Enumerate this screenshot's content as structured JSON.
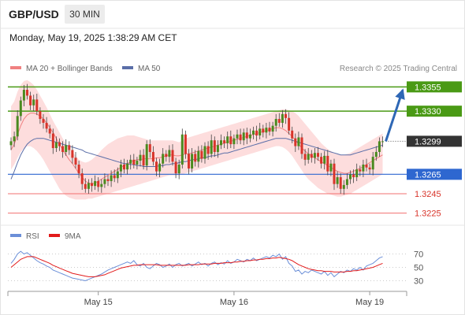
{
  "header": {
    "pair": "GBP/USD",
    "timeframe": "30 MIN",
    "datetime": "Monday, May 19, 2025 1:38:29 AM CET"
  },
  "legend": {
    "bollinger": "MA 20 + Bollinger Bands",
    "ma50": "MA 50",
    "source": "Research © 2025 Trading Central",
    "rsi": "RSI",
    "rsi_ma": "9MA"
  },
  "colors": {
    "bullish": "#4a8a1f",
    "bearish": "#d8342a",
    "resistance": "#4a9a15",
    "pivot": "#2e67d0",
    "support": "#f27070",
    "ma20": "#f08080",
    "ma50": "#5a6ea8",
    "bands": "#fdd9d9",
    "rsi": "#6b8fd8",
    "rsi_ma": "#e21b1b",
    "arrow": "#2e67b5",
    "current": "#333333"
  },
  "chart_data": [
    {
      "type": "candlestick",
      "title": "GBP/USD 30 MIN",
      "x_ticks": [
        "May 15",
        "May 16",
        "May 19"
      ],
      "ylim": [
        1.3215,
        1.3365
      ],
      "levels": [
        {
          "label": "1.3355",
          "value": 1.3355,
          "kind": "resistance"
        },
        {
          "label": "1.3330",
          "value": 1.333,
          "kind": "resistance"
        },
        {
          "label": "1.3299",
          "value": 1.3299,
          "kind": "current"
        },
        {
          "label": "1.3265",
          "value": 1.3265,
          "kind": "pivot"
        },
        {
          "label": "1.3245",
          "value": 1.3245,
          "kind": "support"
        },
        {
          "label": "1.3225",
          "value": 1.3225,
          "kind": "support"
        }
      ],
      "closes": [
        1.3299,
        1.3304,
        1.3325,
        1.3341,
        1.3352,
        1.3346,
        1.3336,
        1.3342,
        1.333,
        1.3322,
        1.3318,
        1.3312,
        1.3307,
        1.3292,
        1.3298,
        1.3294,
        1.3288,
        1.3295,
        1.329,
        1.3282,
        1.3275,
        1.3266,
        1.3255,
        1.325,
        1.3256,
        1.3253,
        1.3258,
        1.3252,
        1.3255,
        1.326,
        1.3258,
        1.3264,
        1.3261,
        1.3268,
        1.3275,
        1.327,
        1.3276,
        1.328,
        1.3275,
        1.3279,
        1.3285,
        1.3274,
        1.3296,
        1.3288,
        1.3278,
        1.3268,
        1.3276,
        1.3286,
        1.3283,
        1.329,
        1.3278,
        1.3266,
        1.3275,
        1.3306,
        1.3286,
        1.3271,
        1.3286,
        1.3278,
        1.3289,
        1.3281,
        1.3294,
        1.3286,
        1.33,
        1.3288,
        1.3295,
        1.33,
        1.3297,
        1.3304,
        1.3296,
        1.3302,
        1.3306,
        1.33,
        1.3308,
        1.3302,
        1.3306,
        1.331,
        1.3305,
        1.3312,
        1.3308,
        1.3313,
        1.3309,
        1.3315,
        1.3322,
        1.3318,
        1.3327,
        1.3323,
        1.331,
        1.3302,
        1.3294,
        1.3303,
        1.3286,
        1.328,
        1.3286,
        1.3282,
        1.3287,
        1.3283,
        1.3276,
        1.3284,
        1.3268,
        1.3276,
        1.3255,
        1.3262,
        1.325,
        1.3254,
        1.326,
        1.3265,
        1.3262,
        1.327,
        1.3268,
        1.3275,
        1.3272,
        1.327,
        1.3283,
        1.3288,
        1.3299,
        1.3299
      ],
      "ma20": [
        1.329,
        1.3296,
        1.3306,
        1.3315,
        1.3322,
        1.3326,
        1.3328,
        1.3328,
        1.3327,
        1.3325,
        1.3322,
        1.3318,
        1.3313,
        1.3308,
        1.3302,
        1.3296,
        1.329,
        1.3285,
        1.328,
        1.3276,
        1.3271,
        1.3266,
        1.3262,
        1.3258,
        1.3256,
        1.3255,
        1.3256,
        1.3258,
        1.326,
        1.3262,
        1.3264,
        1.3266,
        1.3268,
        1.327,
        1.3272,
        1.3274,
        1.3276,
        1.3278,
        1.3279,
        1.328,
        1.328,
        1.3281,
        1.3281,
        1.3281,
        1.3281,
        1.3282,
        1.3282,
        1.3283,
        1.3284,
        1.3285,
        1.3285,
        1.3284,
        1.3284,
        1.3285,
        1.3286,
        1.3286,
        1.3287,
        1.3288,
        1.3289,
        1.329,
        1.3291,
        1.3292,
        1.3293,
        1.3294,
        1.3295,
        1.3296,
        1.3297,
        1.3298,
        1.3299,
        1.33,
        1.3301,
        1.3302,
        1.3303,
        1.3304,
        1.3305,
        1.3306,
        1.3307,
        1.3308,
        1.3309,
        1.331,
        1.3311,
        1.3312,
        1.3313,
        1.3313,
        1.3312,
        1.331,
        1.3307,
        1.3304,
        1.33,
        1.3296,
        1.3292,
        1.3289,
        1.3286,
        1.3284,
        1.3282,
        1.328,
        1.3278,
        1.3276,
        1.3274,
        1.3272,
        1.327,
        1.3268,
        1.3267,
        1.3266,
        1.3266,
        1.3267,
        1.3268,
        1.327,
        1.3271,
        1.3273,
        1.3275,
        1.3277,
        1.3279,
        1.3281,
        1.3283,
        1.3285
      ],
      "upper_band": [
        1.3335,
        1.334,
        1.335,
        1.3357,
        1.3361,
        1.3362,
        1.336,
        1.3357,
        1.3352,
        1.3346,
        1.334,
        1.3334,
        1.3327,
        1.332,
        1.3314,
        1.3308,
        1.3302,
        1.3296,
        1.3292,
        1.3288,
        1.3284,
        1.328,
        1.3278,
        1.3277,
        1.3278,
        1.328,
        1.3283,
        1.3286,
        1.329,
        1.3293,
        1.3296,
        1.3298,
        1.33,
        1.3302,
        1.3303,
        1.3304,
        1.3305,
        1.3305,
        1.3305,
        1.3304,
        1.3303,
        1.3302,
        1.3301,
        1.33,
        1.33,
        1.33,
        1.33,
        1.33,
        1.33,
        1.33,
        1.33,
        1.3299,
        1.3298,
        1.33,
        1.3302,
        1.3303,
        1.3304,
        1.3305,
        1.3306,
        1.3307,
        1.3308,
        1.3309,
        1.331,
        1.3311,
        1.3312,
        1.3313,
        1.3314,
        1.3315,
        1.3316,
        1.3317,
        1.3318,
        1.3319,
        1.332,
        1.3321,
        1.3322,
        1.3323,
        1.3324,
        1.3325,
        1.3326,
        1.3327,
        1.3328,
        1.3329,
        1.333,
        1.3331,
        1.3332,
        1.3332,
        1.3331,
        1.333,
        1.3328,
        1.3325,
        1.3321,
        1.3317,
        1.3313,
        1.3309,
        1.3305,
        1.3301,
        1.3297,
        1.3294,
        1.3291,
        1.3289,
        1.3287,
        1.3286,
        1.3285,
        1.3285,
        1.3286,
        1.3287,
        1.3289,
        1.3291,
        1.3293,
        1.3295,
        1.3297,
        1.3299,
        1.3301,
        1.3303,
        1.3305,
        1.3307
      ],
      "lower_band": [
        1.327,
        1.3275,
        1.3282,
        1.3288,
        1.3292,
        1.3294,
        1.3294,
        1.3292,
        1.3289,
        1.3285,
        1.328,
        1.3274,
        1.3268,
        1.3262,
        1.3256,
        1.325,
        1.3246,
        1.3243,
        1.3241,
        1.324,
        1.3239,
        1.3239,
        1.3239,
        1.3239,
        1.324,
        1.324,
        1.3241,
        1.3242,
        1.3243,
        1.3244,
        1.3245,
        1.3246,
        1.3247,
        1.3248,
        1.3249,
        1.325,
        1.3251,
        1.3252,
        1.3253,
        1.3254,
        1.3255,
        1.3256,
        1.3257,
        1.3258,
        1.3259,
        1.326,
        1.3261,
        1.3262,
        1.3263,
        1.3264,
        1.3264,
        1.3264,
        1.3264,
        1.3265,
        1.3266,
        1.3267,
        1.3268,
        1.3269,
        1.327,
        1.3271,
        1.3272,
        1.3273,
        1.3274,
        1.3275,
        1.3276,
        1.3277,
        1.3278,
        1.3279,
        1.328,
        1.3281,
        1.3282,
        1.3283,
        1.3284,
        1.3285,
        1.3286,
        1.3287,
        1.3288,
        1.3289,
        1.329,
        1.3291,
        1.3292,
        1.3293,
        1.3294,
        1.3294,
        1.3293,
        1.3291,
        1.3288,
        1.3284,
        1.3279,
        1.3274,
        1.3269,
        1.3264,
        1.326,
        1.3257,
        1.3254,
        1.3251,
        1.3249,
        1.3247,
        1.3245,
        1.3244,
        1.3243,
        1.3242,
        1.3242,
        1.3243,
        1.3244,
        1.3245,
        1.3247,
        1.3249,
        1.3251,
        1.3253,
        1.3255,
        1.3257,
        1.3259,
        1.3261,
        1.3263,
        1.3265
      ],
      "ma50": [
        1.326,
        1.3268,
        1.3277,
        1.3285,
        1.3291,
        1.3296,
        1.3299,
        1.3301,
        1.3302,
        1.3302,
        1.3302,
        1.3301,
        1.33,
        1.3299,
        1.3298,
        1.3297,
        1.3296,
        1.3295,
        1.3294,
        1.3293,
        1.3292,
        1.3291,
        1.329,
        1.3288,
        1.3287,
        1.3286,
        1.3285,
        1.3284,
        1.3283,
        1.3282,
        1.3281,
        1.328,
        1.3279,
        1.3278,
        1.3277,
        1.3276,
        1.3276,
        1.3275,
        1.3275,
        1.3274,
        1.3274,
        1.3273,
        1.3273,
        1.3273,
        1.3273,
        1.3273,
        1.3274,
        1.3274,
        1.3275,
        1.3275,
        1.3276,
        1.3276,
        1.3277,
        1.3278,
        1.3278,
        1.3279,
        1.328,
        1.328,
        1.3281,
        1.3282,
        1.3282,
        1.3283,
        1.3284,
        1.3284,
        1.3285,
        1.3286,
        1.3287,
        1.3287,
        1.3288,
        1.3289,
        1.329,
        1.3291,
        1.3292,
        1.3293,
        1.3294,
        1.3295,
        1.3296,
        1.3297,
        1.3298,
        1.3299,
        1.33,
        1.3301,
        1.3302,
        1.3302,
        1.3302,
        1.3302,
        1.3301,
        1.33,
        1.3299,
        1.3298,
        1.3297,
        1.3296,
        1.3295,
        1.3294,
        1.3293,
        1.3292,
        1.3291,
        1.329,
        1.3289,
        1.3288,
        1.3287,
        1.3286,
        1.3285,
        1.3285,
        1.3285,
        1.3285,
        1.3286,
        1.3287,
        1.3288,
        1.3289,
        1.329,
        1.3291,
        1.3292,
        1.3293,
        1.3294,
        1.3295
      ]
    },
    {
      "type": "line",
      "title": "RSI",
      "ylim": [
        20,
        80
      ],
      "y_ticks": [
        30,
        50,
        70
      ],
      "series": [
        {
          "name": "RSI",
          "values": [
            56,
            62,
            70,
            74,
            70,
            72,
            68,
            64,
            60,
            57,
            55,
            52,
            50,
            46,
            44,
            42,
            40,
            38,
            36,
            34,
            33,
            32,
            31,
            30,
            32,
            34,
            36,
            38,
            40,
            43,
            46,
            48,
            50,
            52,
            54,
            56,
            58,
            56,
            60,
            54,
            52,
            56,
            50,
            48,
            52,
            56,
            54,
            50,
            52,
            55,
            50,
            54,
            56,
            52,
            54,
            56,
            52,
            55,
            58,
            54,
            56,
            52,
            56,
            58,
            54,
            57,
            55,
            60,
            56,
            58,
            62,
            60,
            58,
            62,
            60,
            64,
            60,
            62,
            64,
            66,
            64,
            68,
            66,
            70,
            62,
            66,
            56,
            52,
            44,
            46,
            40,
            44,
            42,
            46,
            44,
            42,
            40,
            44,
            38,
            42,
            36,
            40,
            44,
            42,
            46,
            44,
            48,
            46,
            50,
            46,
            52,
            54,
            56,
            60,
            64,
            66
          ]
        },
        {
          "name": "9MA",
          "values": [
            50,
            54,
            58,
            62,
            64,
            66,
            66,
            66,
            64,
            62,
            60,
            58,
            56,
            53,
            51,
            49,
            47,
            45,
            43,
            41,
            40,
            39,
            38,
            37,
            36,
            36,
            36,
            37,
            38,
            39,
            41,
            43,
            45,
            47,
            49,
            50,
            51,
            52,
            53,
            53,
            54,
            54,
            54,
            54,
            54,
            54,
            53,
            53,
            53,
            53,
            53,
            53,
            53,
            53,
            53,
            54,
            54,
            54,
            54,
            55,
            55,
            55,
            55,
            56,
            56,
            56,
            57,
            57,
            57,
            58,
            58,
            59,
            59,
            60,
            60,
            61,
            61,
            62,
            62,
            63,
            63,
            64,
            64,
            65,
            64,
            63,
            62,
            60,
            57,
            54,
            52,
            50,
            48,
            47,
            46,
            45,
            45,
            44,
            44,
            44,
            43,
            43,
            43,
            43,
            44,
            44,
            45,
            45,
            46,
            47,
            48,
            49,
            50,
            52,
            54,
            56
          ]
        }
      ]
    }
  ]
}
